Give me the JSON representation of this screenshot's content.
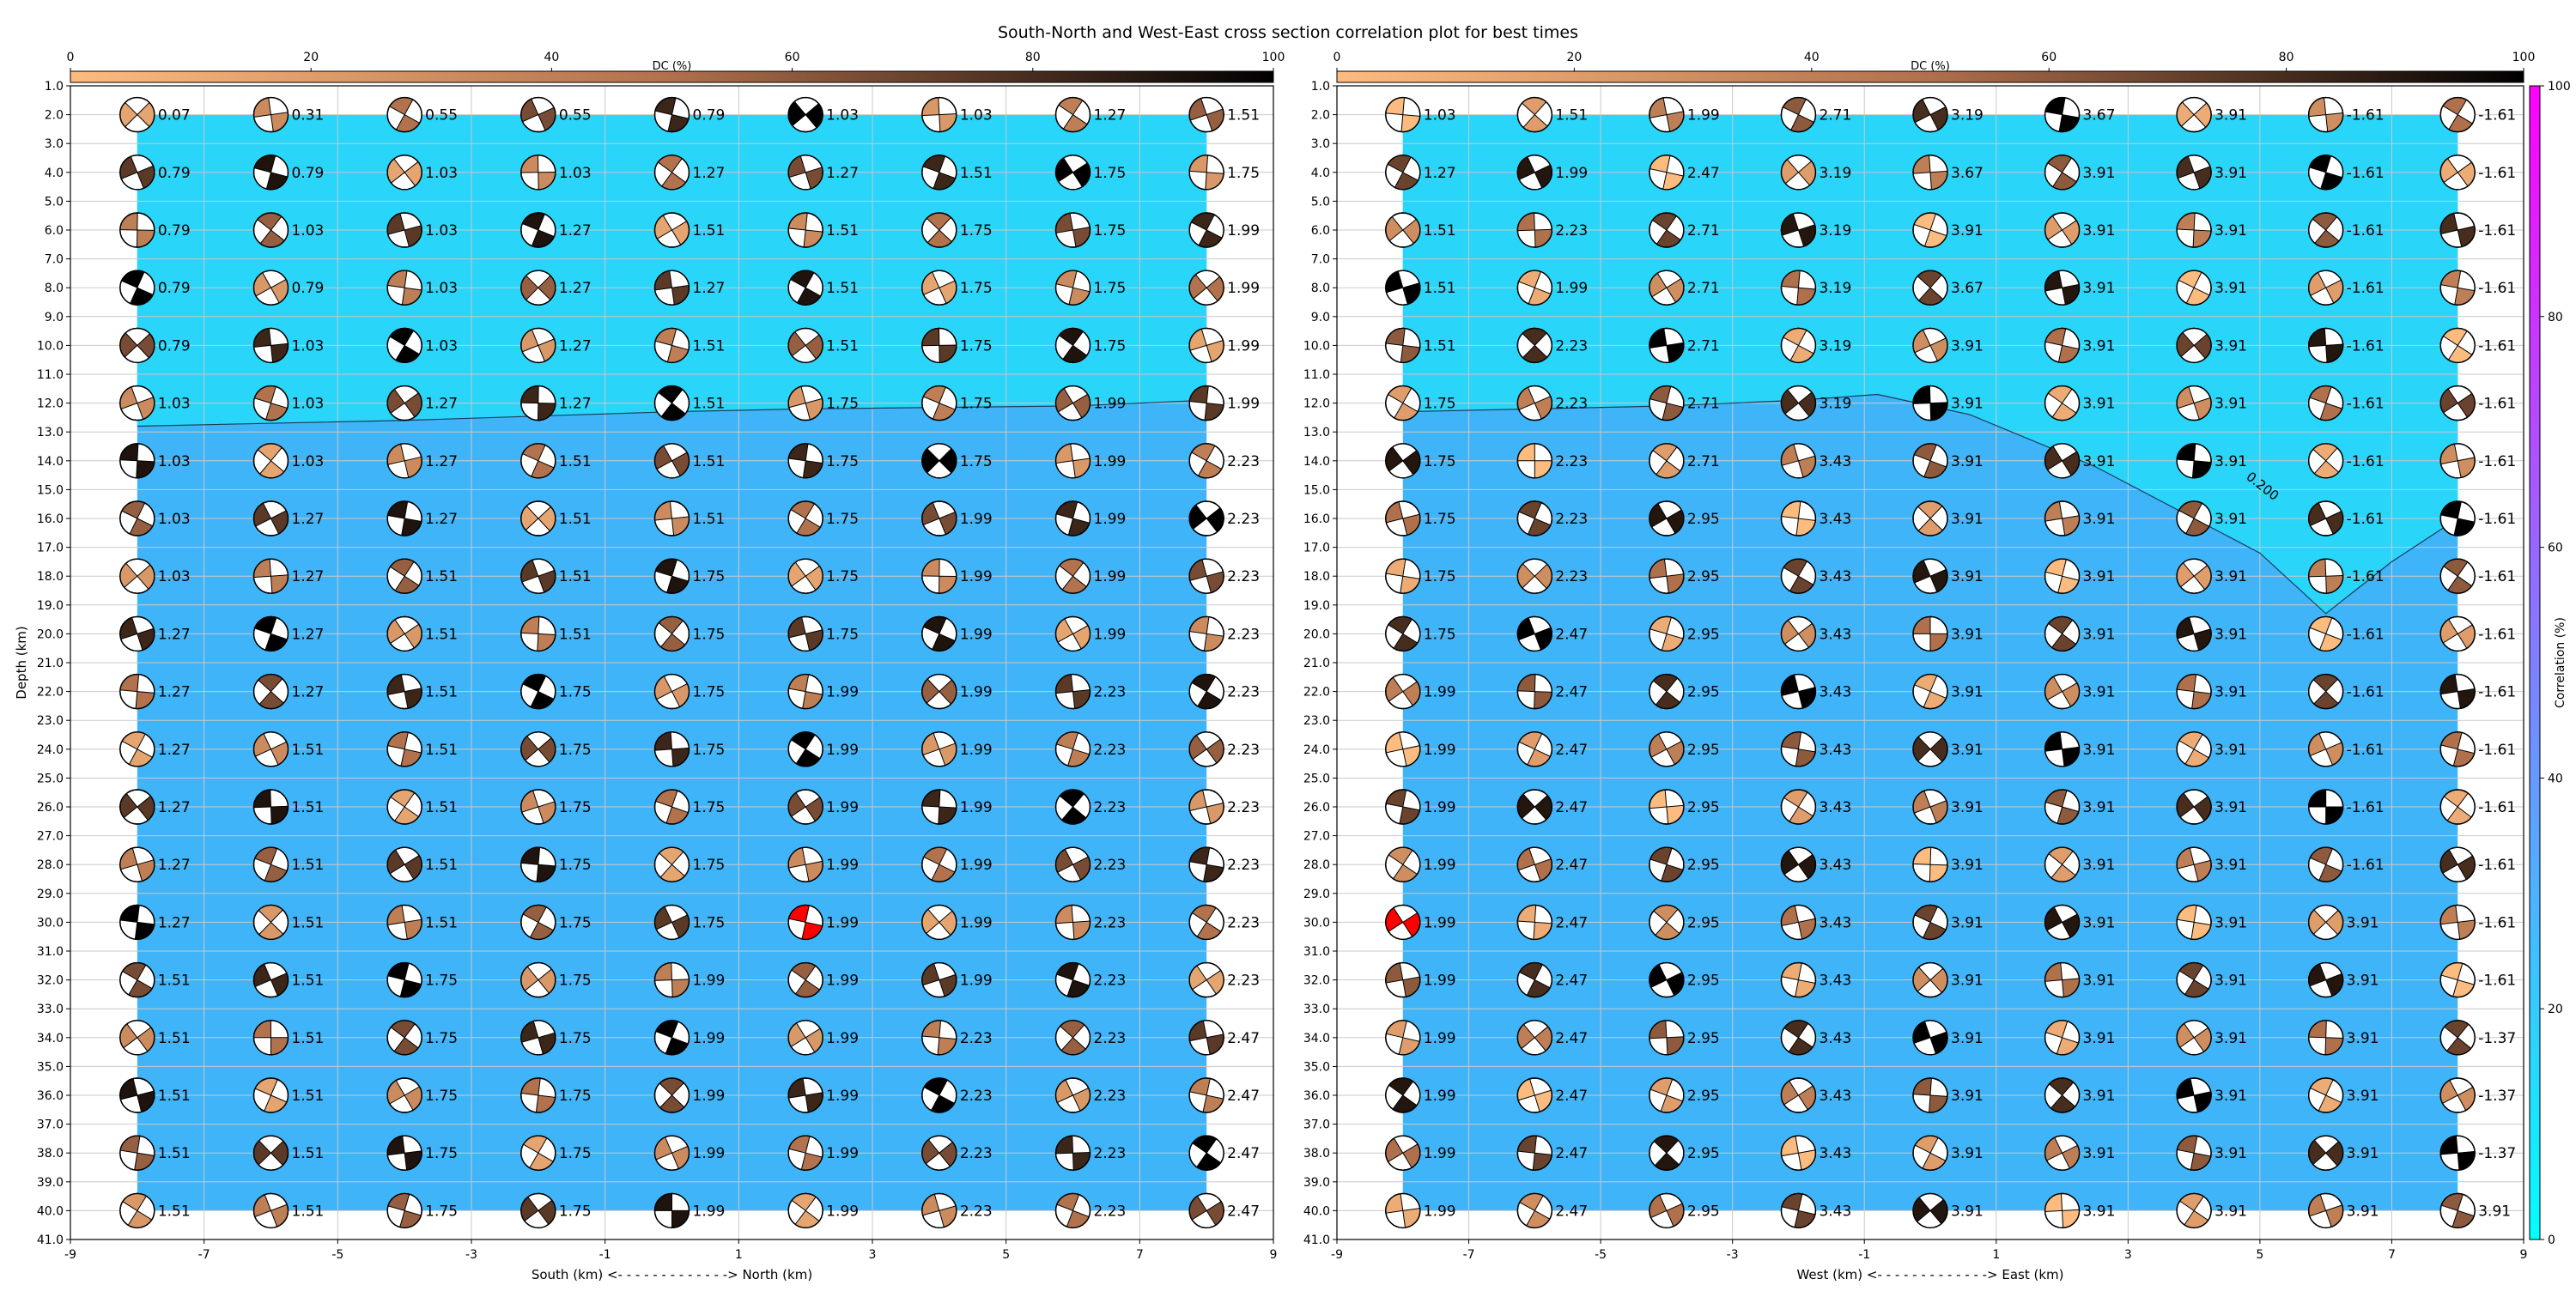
{
  "title": "South-North and West-East cross section correlation plot for best times",
  "colors": {
    "dc_low": "#fcbb7f",
    "dc_mid": "#b0704c",
    "dc_high": "#000000",
    "corr_low": "#00ffff",
    "corr_high": "#ff00ff",
    "bg_upper": "#29d5f9",
    "bg_lower": "#40b4f8",
    "best": "#ff0000"
  },
  "chart_data": [
    {
      "type": "scatter",
      "panel": "south-north",
      "xlabel": "South (km) <- - - - - - - - - - - - -> North (km)",
      "ylabel": "Depth (km)",
      "xlim": [
        -9,
        9
      ],
      "ylim": [
        41,
        1
      ],
      "x_ticks": [
        "-9",
        "-7",
        "-5",
        "-3",
        "-1",
        "1",
        "3",
        "5",
        "7",
        "9"
      ],
      "y_ticks": [
        "1.0",
        "2.0",
        "3.0",
        "4.0",
        "5.0",
        "6.0",
        "7.0",
        "8.0",
        "9.0",
        "10.0",
        "11.0",
        "12.0",
        "13.0",
        "14.0",
        "15.0",
        "16.0",
        "17.0",
        "18.0",
        "19.0",
        "20.0",
        "21.0",
        "22.0",
        "23.0",
        "24.0",
        "25.0",
        "26.0",
        "27.0",
        "28.0",
        "29.0",
        "30.0",
        "31.0",
        "32.0",
        "33.0",
        "34.0",
        "35.0",
        "36.0",
        "37.0",
        "38.0",
        "39.0",
        "40.0",
        "41.0"
      ],
      "x_positions": [
        -8,
        -6,
        -4,
        -2,
        0,
        2,
        4,
        6,
        8
      ],
      "depths": [
        2,
        4,
        6,
        8,
        10,
        12,
        14,
        16,
        18,
        20,
        22,
        24,
        26,
        28,
        30,
        32,
        34,
        36,
        38,
        40
      ],
      "time_labels": [
        [
          "0.07",
          "0.31",
          "0.55",
          "0.55",
          "0.79",
          "1.03",
          "1.03",
          "1.27",
          "1.51"
        ],
        [
          "0.79",
          "0.79",
          "1.03",
          "1.03",
          "1.27",
          "1.27",
          "1.51",
          "1.75",
          "1.75"
        ],
        [
          "0.79",
          "1.03",
          "1.03",
          "1.27",
          "1.51",
          "1.51",
          "1.75",
          "1.75",
          "1.99"
        ],
        [
          "0.79",
          "0.79",
          "1.03",
          "1.27",
          "1.27",
          "1.51",
          "1.75",
          "1.75",
          "1.99"
        ],
        [
          "0.79",
          "1.03",
          "1.03",
          "1.27",
          "1.51",
          "1.51",
          "1.75",
          "1.75",
          "1.99"
        ],
        [
          "1.03",
          "1.03",
          "1.27",
          "1.27",
          "1.51",
          "1.75",
          "1.75",
          "1.99",
          "1.99"
        ],
        [
          "1.03",
          "1.03",
          "1.27",
          "1.51",
          "1.51",
          "1.75",
          "1.75",
          "1.99",
          "2.23"
        ],
        [
          "1.03",
          "1.27",
          "1.27",
          "1.51",
          "1.51",
          "1.75",
          "1.99",
          "1.99",
          "2.23"
        ],
        [
          "1.03",
          "1.27",
          "1.51",
          "1.51",
          "1.75",
          "1.75",
          "1.99",
          "1.99",
          "2.23"
        ],
        [
          "1.27",
          "1.27",
          "1.51",
          "1.51",
          "1.75",
          "1.75",
          "1.99",
          "1.99",
          "2.23"
        ],
        [
          "1.27",
          "1.27",
          "1.51",
          "1.75",
          "1.75",
          "1.99",
          "1.99",
          "2.23",
          "2.23"
        ],
        [
          "1.27",
          "1.51",
          "1.51",
          "1.75",
          "1.75",
          "1.99",
          "1.99",
          "2.23",
          "2.23"
        ],
        [
          "1.27",
          "1.51",
          "1.51",
          "1.75",
          "1.75",
          "1.99",
          "1.99",
          "2.23",
          "2.23"
        ],
        [
          "1.27",
          "1.51",
          "1.51",
          "1.75",
          "1.75",
          "1.99",
          "1.99",
          "2.23",
          "2.23"
        ],
        [
          "1.27",
          "1.51",
          "1.51",
          "1.75",
          "1.75",
          "1.99",
          "1.99",
          "2.23",
          "2.23"
        ],
        [
          "1.51",
          "1.51",
          "1.75",
          "1.75",
          "1.99",
          "1.99",
          "1.99",
          "2.23",
          "2.23"
        ],
        [
          "1.51",
          "1.51",
          "1.75",
          "1.75",
          "1.99",
          "1.99",
          "2.23",
          "2.23",
          "2.47"
        ],
        [
          "1.51",
          "1.51",
          "1.75",
          "1.75",
          "1.99",
          "1.99",
          "2.23",
          "2.23",
          "2.47"
        ],
        [
          "1.51",
          "1.51",
          "1.75",
          "1.75",
          "1.99",
          "1.99",
          "2.23",
          "2.23",
          "2.47"
        ],
        [
          "1.51",
          "1.51",
          "1.75",
          "1.75",
          "1.99",
          "1.99",
          "2.23",
          "2.23",
          "2.47"
        ]
      ],
      "best_solution": {
        "x": 2,
        "depth": 30
      },
      "contour_label": "",
      "contour_line": [
        [
          -8,
          12.8
        ],
        [
          -4,
          12.6
        ],
        [
          0,
          12.3
        ],
        [
          2,
          12.2
        ],
        [
          6,
          12.1
        ],
        [
          8,
          11.9
        ]
      ]
    },
    {
      "type": "scatter",
      "panel": "west-east",
      "xlabel": "West (km) <- - - - - - - - - - - - -> East (km)",
      "ylabel": "",
      "xlim": [
        -9,
        9
      ],
      "ylim": [
        41,
        1
      ],
      "x_ticks": [
        "-9",
        "-7",
        "-5",
        "-3",
        "-1",
        "1",
        "3",
        "5",
        "7",
        "9"
      ],
      "y_ticks": [
        "1.0",
        "2.0",
        "3.0",
        "4.0",
        "5.0",
        "6.0",
        "7.0",
        "8.0",
        "9.0",
        "10.0",
        "11.0",
        "12.0",
        "13.0",
        "14.0",
        "15.0",
        "16.0",
        "17.0",
        "18.0",
        "19.0",
        "20.0",
        "21.0",
        "22.0",
        "23.0",
        "24.0",
        "25.0",
        "26.0",
        "27.0",
        "28.0",
        "29.0",
        "30.0",
        "31.0",
        "32.0",
        "33.0",
        "34.0",
        "35.0",
        "36.0",
        "37.0",
        "38.0",
        "39.0",
        "40.0",
        "41.0"
      ],
      "x_positions": [
        -8,
        -6,
        -4,
        -2,
        0,
        2,
        4,
        6,
        8
      ],
      "depths": [
        2,
        4,
        6,
        8,
        10,
        12,
        14,
        16,
        18,
        20,
        22,
        24,
        26,
        28,
        30,
        32,
        34,
        36,
        38,
        40
      ],
      "time_labels": [
        [
          "1.03",
          "1.51",
          "1.99",
          "2.71",
          "3.19",
          "3.67",
          "3.91",
          "-1.61",
          "-1.61"
        ],
        [
          "1.27",
          "1.99",
          "2.47",
          "3.19",
          "3.67",
          "3.91",
          "3.91",
          "-1.61",
          "-1.61"
        ],
        [
          "1.51",
          "2.23",
          "2.71",
          "3.19",
          "3.91",
          "3.91",
          "3.91",
          "-1.61",
          "-1.61"
        ],
        [
          "1.51",
          "1.99",
          "2.71",
          "3.19",
          "3.67",
          "3.91",
          "3.91",
          "-1.61",
          "-1.61"
        ],
        [
          "1.51",
          "2.23",
          "2.71",
          "3.19",
          "3.91",
          "3.91",
          "3.91",
          "-1.61",
          "-1.61"
        ],
        [
          "1.75",
          "2.23",
          "2.71",
          "3.19",
          "3.91",
          "3.91",
          "3.91",
          "-1.61",
          "-1.61"
        ],
        [
          "1.75",
          "2.23",
          "2.71",
          "3.43",
          "3.91",
          "3.91",
          "3.91",
          "-1.61",
          "-1.61"
        ],
        [
          "1.75",
          "2.23",
          "2.95",
          "3.43",
          "3.91",
          "3.91",
          "3.91",
          "-1.61",
          "-1.61"
        ],
        [
          "1.75",
          "2.23",
          "2.95",
          "3.43",
          "3.91",
          "3.91",
          "3.91",
          "-1.61",
          "-1.61"
        ],
        [
          "1.75",
          "2.47",
          "2.95",
          "3.43",
          "3.91",
          "3.91",
          "3.91",
          "-1.61",
          "-1.61"
        ],
        [
          "1.99",
          "2.47",
          "2.95",
          "3.43",
          "3.91",
          "3.91",
          "3.91",
          "-1.61",
          "-1.61"
        ],
        [
          "1.99",
          "2.47",
          "2.95",
          "3.43",
          "3.91",
          "3.91",
          "3.91",
          "-1.61",
          "-1.61"
        ],
        [
          "1.99",
          "2.47",
          "2.95",
          "3.43",
          "3.91",
          "3.91",
          "3.91",
          "-1.61",
          "-1.61"
        ],
        [
          "1.99",
          "2.47",
          "2.95",
          "3.43",
          "3.91",
          "3.91",
          "3.91",
          "-1.61",
          "-1.61"
        ],
        [
          "1.99",
          "2.47",
          "2.95",
          "3.43",
          "3.91",
          "3.91",
          "3.91",
          "3.91",
          "-1.61"
        ],
        [
          "1.99",
          "2.47",
          "2.95",
          "3.43",
          "3.91",
          "3.91",
          "3.91",
          "3.91",
          "-1.61"
        ],
        [
          "1.99",
          "2.47",
          "2.95",
          "3.43",
          "3.91",
          "3.91",
          "3.91",
          "3.91",
          "-1.37"
        ],
        [
          "1.99",
          "2.47",
          "2.95",
          "3.43",
          "3.91",
          "3.91",
          "3.91",
          "3.91",
          "-1.37"
        ],
        [
          "1.99",
          "2.47",
          "2.95",
          "3.43",
          "3.91",
          "3.91",
          "3.91",
          "3.91",
          "-1.37"
        ],
        [
          "1.99",
          "2.47",
          "2.95",
          "3.43",
          "3.91",
          "3.91",
          "3.91",
          "3.91",
          "3.91"
        ]
      ],
      "best_solution": {
        "x": -8,
        "depth": 30
      },
      "contour_label": "0.200",
      "contour_line": [
        [
          -8,
          12.3
        ],
        [
          -4,
          12.1
        ],
        [
          -2,
          11.9
        ],
        [
          -0.8,
          11.7
        ],
        [
          0.6,
          12.4
        ],
        [
          2.5,
          14.2
        ],
        [
          4,
          16.0
        ],
        [
          5,
          17.2
        ],
        [
          6,
          19.3
        ],
        [
          7,
          17.5
        ],
        [
          8,
          16.0
        ]
      ]
    }
  ],
  "dc_colorbars": [
    {
      "label": "DC (%)",
      "ticks": [
        "0",
        "20",
        "40",
        "60",
        "80",
        "100"
      ]
    },
    {
      "label": "DC (%)",
      "ticks": [
        "0",
        "20",
        "40",
        "60",
        "80",
        "100"
      ]
    }
  ],
  "corr_colorbar": {
    "label": "Correlation (%)",
    "ticks": [
      "0",
      "20",
      "40",
      "60",
      "80",
      "100"
    ]
  }
}
